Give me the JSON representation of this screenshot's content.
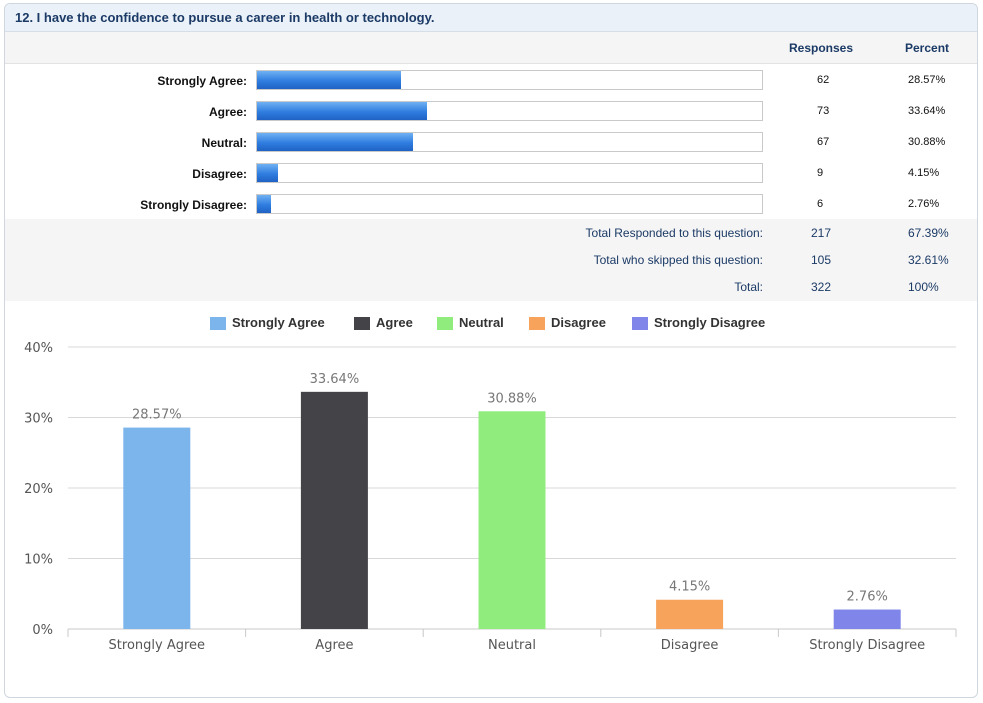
{
  "question": {
    "title": "12. I have the confidence to pursue a career in health or technology."
  },
  "table": {
    "headers": {
      "responses": "Responses",
      "percent": "Percent"
    },
    "rows": [
      {
        "label": "Strongly Agree:",
        "responses": "62",
        "percent": "28.57%",
        "fraction": 0.2857
      },
      {
        "label": "Agree:",
        "responses": "73",
        "percent": "33.64%",
        "fraction": 0.3364
      },
      {
        "label": "Neutral:",
        "responses": "67",
        "percent": "30.88%",
        "fraction": 0.3088
      },
      {
        "label": "Disagree:",
        "responses": "9",
        "percent": "4.15%",
        "fraction": 0.0415
      },
      {
        "label": "Strongly Disagree:",
        "responses": "6",
        "percent": "2.76%",
        "fraction": 0.0276
      }
    ],
    "totals": [
      {
        "label": "Total Responded to this question:",
        "responses": "217",
        "percent": "67.39%"
      },
      {
        "label": "Total who skipped this question:",
        "responses": "105",
        "percent": "32.61%"
      },
      {
        "label": "Total:",
        "responses": "322",
        "percent": "100%"
      }
    ]
  },
  "chart_data": {
    "type": "bar",
    "categories": [
      "Strongly Agree",
      "Agree",
      "Neutral",
      "Disagree",
      "Strongly Disagree"
    ],
    "values": [
      28.57,
      33.64,
      30.88,
      4.15,
      2.76
    ],
    "data_labels": [
      "28.57%",
      "33.64%",
      "30.88%",
      "4.15%",
      "2.76%"
    ],
    "colors": [
      "#7cb5ec",
      "#434348",
      "#90ed7d",
      "#f7a35c",
      "#8085e9"
    ],
    "ylim": [
      0,
      40
    ],
    "yticks": [
      "0%",
      "10%",
      "20%",
      "30%",
      "40%"
    ],
    "ytick_values": [
      0,
      10,
      20,
      30,
      40
    ],
    "legend": [
      "Strongly Agree",
      "Agree",
      "Neutral",
      "Disagree",
      "Strongly Disagree"
    ],
    "legend_position": "top-center",
    "grid": true,
    "title": "",
    "xlabel": "",
    "ylabel": ""
  }
}
